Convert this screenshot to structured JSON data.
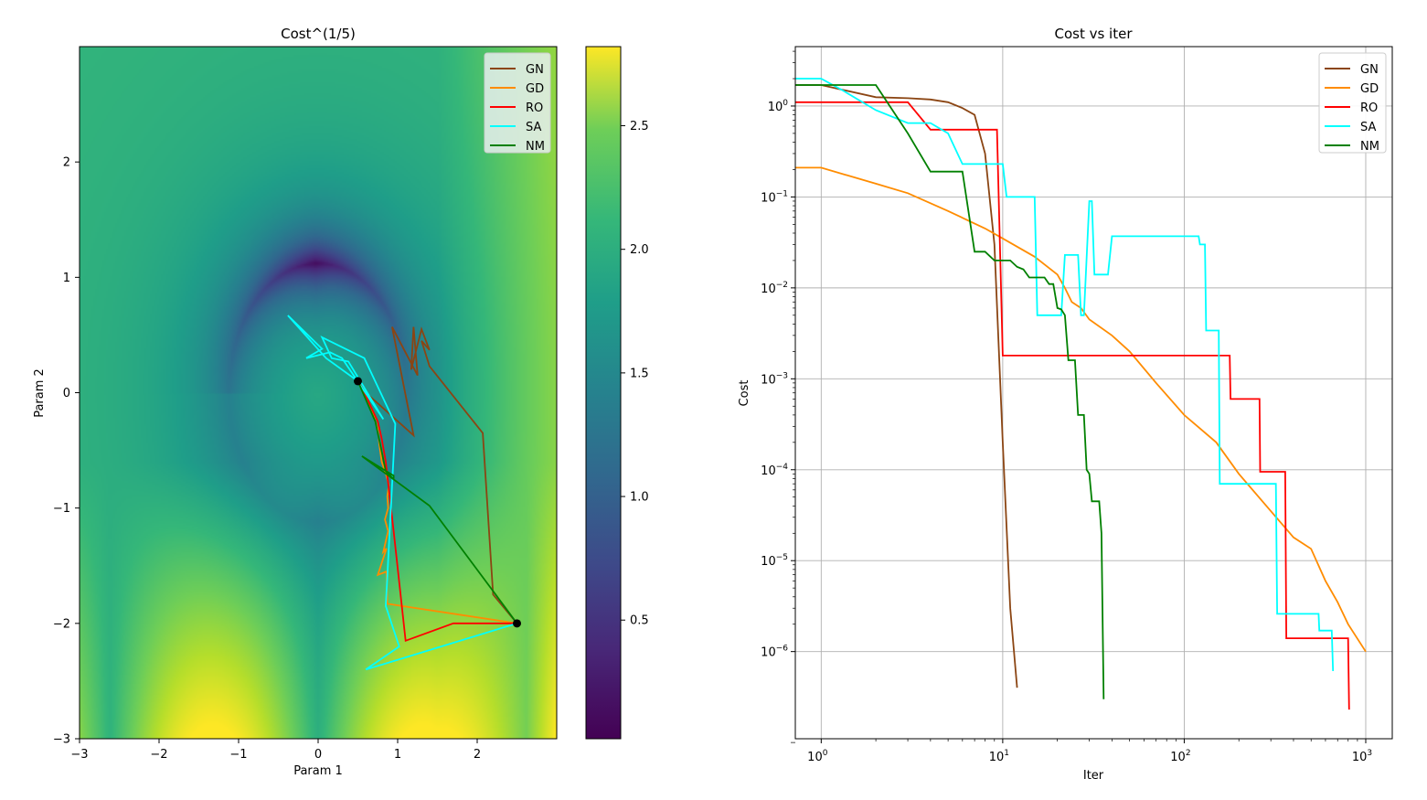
{
  "chart_data": [
    {
      "type": "heatmap",
      "title": "Cost^(1/5)",
      "xlabel": "Param 1",
      "ylabel": "Param 2",
      "xlim": [
        -3,
        3
      ],
      "ylim": [
        -3,
        3
      ],
      "xticks": [
        -3,
        -2,
        -1,
        0,
        1,
        2
      ],
      "yticks": [
        -3,
        -2,
        -1,
        0,
        1,
        2
      ],
      "colorbar": {
        "colormap": "viridis",
        "range": [
          0.02,
          2.82
        ],
        "ticks": [
          0.5,
          1.0,
          1.5,
          2.0,
          2.5
        ],
        "tick_labels": [
          "0.5",
          "1.0",
          "1.5",
          "2.0",
          "2.5"
        ]
      },
      "legend_position": "top-right",
      "markers": [
        {
          "x": 2.5,
          "y": -2.0,
          "color": "#000000"
        },
        {
          "x": 0.5,
          "y": 0.1,
          "color": "#000000"
        }
      ],
      "series": [
        {
          "name": "GN",
          "color": "#8b4513",
          "points": [
            [
              2.5,
              -2.0
            ],
            [
              2.2,
              -1.75
            ],
            [
              2.07,
              -0.35
            ],
            [
              1.4,
              0.23
            ],
            [
              1.3,
              0.45
            ],
            [
              1.4,
              0.37
            ],
            [
              1.3,
              0.55
            ],
            [
              1.17,
              0.2
            ],
            [
              1.2,
              0.57
            ],
            [
              1.25,
              0.15
            ],
            [
              0.93,
              0.57
            ],
            [
              1.2,
              -0.37
            ],
            [
              0.6,
              0.0
            ],
            [
              0.5,
              0.1
            ]
          ]
        },
        {
          "name": "GD",
          "color": "#ff8c00",
          "points": [
            [
              2.5,
              -2.0
            ],
            [
              0.87,
              -1.83
            ],
            [
              0.86,
              -1.55
            ],
            [
              0.75,
              -1.58
            ],
            [
              0.86,
              -1.35
            ],
            [
              0.82,
              -1.38
            ],
            [
              0.88,
              -1.2
            ],
            [
              0.84,
              -1.1
            ],
            [
              0.88,
              -1.0
            ],
            [
              0.87,
              -0.9
            ],
            [
              0.89,
              -0.8
            ],
            [
              0.85,
              -0.7
            ],
            [
              0.8,
              -0.6
            ],
            [
              0.77,
              -0.45
            ],
            [
              0.75,
              -0.32
            ],
            [
              0.7,
              -0.2
            ],
            [
              0.6,
              -0.05
            ],
            [
              0.55,
              0.05
            ],
            [
              0.5,
              0.1
            ]
          ]
        },
        {
          "name": "RO",
          "color": "#ff0000",
          "points": [
            [
              2.5,
              -2.0
            ],
            [
              1.7,
              -2.0
            ],
            [
              1.1,
              -2.15
            ],
            [
              0.95,
              -1.2
            ],
            [
              0.85,
              -0.6
            ],
            [
              0.8,
              -0.4
            ],
            [
              0.75,
              -0.25
            ],
            [
              0.65,
              -0.1
            ],
            [
              0.55,
              0.05
            ],
            [
              0.5,
              0.1
            ]
          ]
        },
        {
          "name": "SA",
          "color": "#00ffff",
          "points": [
            [
              2.5,
              -2.0
            ],
            [
              0.6,
              -2.4
            ],
            [
              1.02,
              -2.2
            ],
            [
              0.85,
              -1.85
            ],
            [
              0.97,
              -0.27
            ],
            [
              0.58,
              0.3
            ],
            [
              0.05,
              0.48
            ],
            [
              0.17,
              0.3
            ],
            [
              0.38,
              0.27
            ],
            [
              0.82,
              -0.23
            ],
            [
              0.3,
              0.3
            ],
            [
              0.15,
              0.35
            ],
            [
              -0.15,
              0.3
            ],
            [
              0.05,
              0.38
            ],
            [
              -0.38,
              0.67
            ],
            [
              0.1,
              0.3
            ],
            [
              0.5,
              0.1
            ]
          ]
        },
        {
          "name": "NM",
          "color": "#008000",
          "points": [
            [
              2.5,
              -2.0
            ],
            [
              2.2,
              -1.72
            ],
            [
              1.4,
              -0.98
            ],
            [
              0.55,
              -0.55
            ],
            [
              0.95,
              -0.72
            ],
            [
              0.95,
              -0.75
            ],
            [
              0.85,
              -0.68
            ],
            [
              0.72,
              -0.25
            ],
            [
              0.5,
              0.1
            ]
          ]
        }
      ]
    },
    {
      "type": "line",
      "title": "Cost vs iter",
      "xlabel": "Iter",
      "ylabel": "Cost",
      "xscale": "log",
      "yscale": "log",
      "xlim": [
        0.72,
        1400
      ],
      "ylim": [
        1.1e-07,
        4.5
      ],
      "grid": true,
      "legend_position": "top-right",
      "xticks": [
        1,
        10,
        100,
        1000
      ],
      "xtick_labels": [
        [
          "10",
          "0"
        ],
        [
          "10",
          "1"
        ],
        [
          "10",
          "2"
        ],
        [
          "10",
          "3"
        ]
      ],
      "yticks": [
        1,
        0.1,
        0.01,
        0.001,
        0.0001,
        1e-05,
        1e-06
      ],
      "ytick_labels": [
        [
          "10",
          "0"
        ],
        [
          "10",
          "−1"
        ],
        [
          "10",
          "−2"
        ],
        [
          "10",
          "−3"
        ],
        [
          "10",
          "−4"
        ],
        [
          "10",
          "−5"
        ],
        [
          "10",
          "−6"
        ]
      ],
      "series": [
        {
          "name": "GN",
          "color": "#8b4513",
          "points": [
            [
              0.7,
              1.7
            ],
            [
              1,
              1.7
            ],
            [
              2,
              1.25
            ],
            [
              3,
              1.22
            ],
            [
              4,
              1.18
            ],
            [
              5,
              1.1
            ],
            [
              6,
              0.95
            ],
            [
              7,
              0.8
            ],
            [
              8,
              0.3
            ],
            [
              9,
              0.03
            ],
            [
              10,
              0.0002
            ],
            [
              11,
              3e-06
            ],
            [
              12,
              4e-07
            ]
          ]
        },
        {
          "name": "GD",
          "color": "#ff8c00",
          "points": [
            [
              0.7,
              0.21
            ],
            [
              1,
              0.21
            ],
            [
              2,
              0.14
            ],
            [
              3,
              0.11
            ],
            [
              5,
              0.07
            ],
            [
              8,
              0.045
            ],
            [
              10,
              0.035
            ],
            [
              15,
              0.022
            ],
            [
              20,
              0.014
            ],
            [
              22,
              0.01
            ],
            [
              24,
              0.007
            ],
            [
              27,
              0.006
            ],
            [
              30,
              0.0045
            ],
            [
              40,
              0.003
            ],
            [
              50,
              0.002
            ],
            [
              70,
              0.0009
            ],
            [
              100,
              0.0004
            ],
            [
              150,
              0.0002
            ],
            [
              200,
              9e-05
            ],
            [
              300,
              3.5e-05
            ],
            [
              400,
              1.8e-05
            ],
            [
              500,
              1.35e-05
            ],
            [
              600,
              6e-06
            ],
            [
              700,
              3.5e-06
            ],
            [
              800,
              2e-06
            ],
            [
              1000,
              1e-06
            ]
          ]
        },
        {
          "name": "RO",
          "color": "#ff0000",
          "points": [
            [
              0.7,
              1.1
            ],
            [
              3,
              1.1
            ],
            [
              4,
              0.55
            ],
            [
              9.3,
              0.55
            ],
            [
              10,
              0.0018
            ],
            [
              178,
              0.0018
            ],
            [
              180,
              0.0006
            ],
            [
              260,
              0.0006
            ],
            [
              262,
              9.5e-05
            ],
            [
              360,
              9.5e-05
            ],
            [
              365,
              1.4e-06
            ],
            [
              800,
              1.4e-06
            ],
            [
              810,
              2.3e-07
            ]
          ]
        },
        {
          "name": "SA",
          "color": "#00ffff",
          "points": [
            [
              0.7,
              2.0
            ],
            [
              1,
              2.0
            ],
            [
              1.3,
              1.5
            ],
            [
              2,
              0.9
            ],
            [
              3,
              0.65
            ],
            [
              4,
              0.65
            ],
            [
              5,
              0.5
            ],
            [
              6,
              0.23
            ],
            [
              8,
              0.23
            ],
            [
              10,
              0.23
            ],
            [
              10.5,
              0.1
            ],
            [
              15,
              0.1
            ],
            [
              15.5,
              0.005
            ],
            [
              20,
              0.005
            ],
            [
              21,
              0.005
            ],
            [
              22,
              0.023
            ],
            [
              26,
              0.023
            ],
            [
              27,
              0.005
            ],
            [
              28,
              0.005
            ],
            [
              30,
              0.09
            ],
            [
              31,
              0.09
            ],
            [
              32,
              0.014
            ],
            [
              38,
              0.014
            ],
            [
              40,
              0.037
            ],
            [
              120,
              0.037
            ],
            [
              122,
              0.03
            ],
            [
              130,
              0.03
            ],
            [
              132,
              0.0034
            ],
            [
              155,
              0.0034
            ],
            [
              157,
              7e-05
            ],
            [
              320,
              7e-05
            ],
            [
              325,
              2.6e-06
            ],
            [
              550,
              2.6e-06
            ],
            [
              555,
              1.7e-06
            ],
            [
              650,
              1.7e-06
            ],
            [
              660,
              6.1e-07
            ]
          ]
        },
        {
          "name": "NM",
          "color": "#008000",
          "points": [
            [
              0.7,
              1.7
            ],
            [
              2,
              1.7
            ],
            [
              3,
              0.5
            ],
            [
              4,
              0.19
            ],
            [
              6,
              0.19
            ],
            [
              7,
              0.025
            ],
            [
              8,
              0.025
            ],
            [
              9,
              0.02
            ],
            [
              11,
              0.02
            ],
            [
              12,
              0.017
            ],
            [
              13,
              0.016
            ],
            [
              14,
              0.013
            ],
            [
              17,
              0.013
            ],
            [
              18,
              0.011
            ],
            [
              19,
              0.011
            ],
            [
              20,
              0.006
            ],
            [
              21,
              0.0058
            ],
            [
              22,
              0.005
            ],
            [
              23,
              0.0016
            ],
            [
              25,
              0.0016
            ],
            [
              26,
              0.0004
            ],
            [
              28,
              0.0004
            ],
            [
              29,
              0.0001
            ],
            [
              30,
              9e-05
            ],
            [
              31,
              4.5e-05
            ],
            [
              34,
              4.5e-05
            ],
            [
              35,
              2e-05
            ],
            [
              36,
              3e-07
            ]
          ]
        }
      ]
    }
  ]
}
